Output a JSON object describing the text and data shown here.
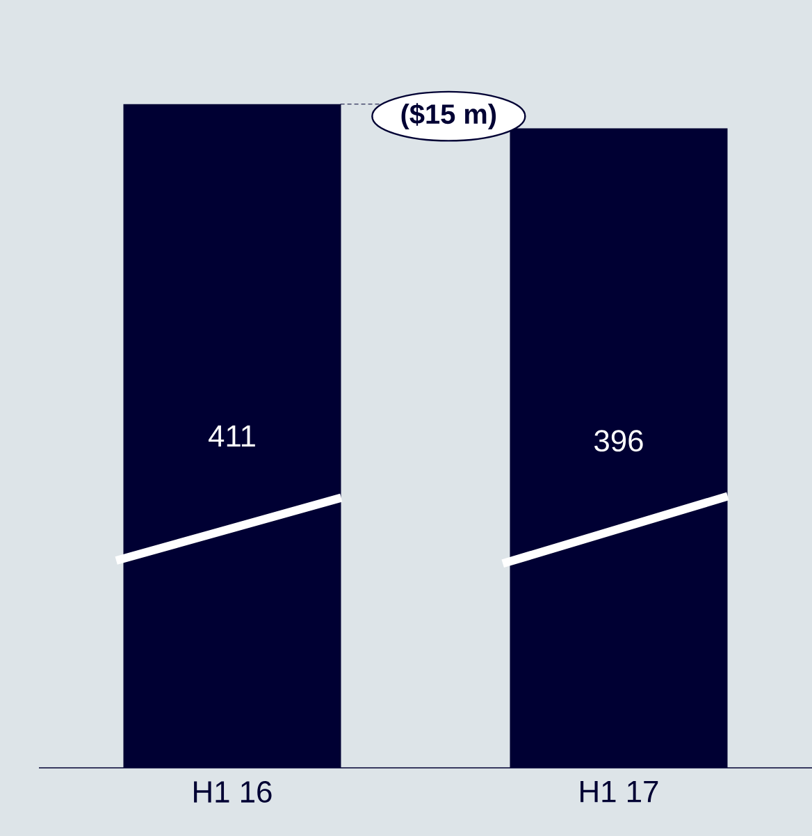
{
  "chart_data": {
    "type": "bar",
    "categories": [
      "H1 16",
      "H1 17"
    ],
    "values": [
      411,
      396
    ],
    "color": "#000033",
    "tick_labels": "x",
    "data_labels": true,
    "annotations": [
      "($15 m)"
    ]
  }
}
